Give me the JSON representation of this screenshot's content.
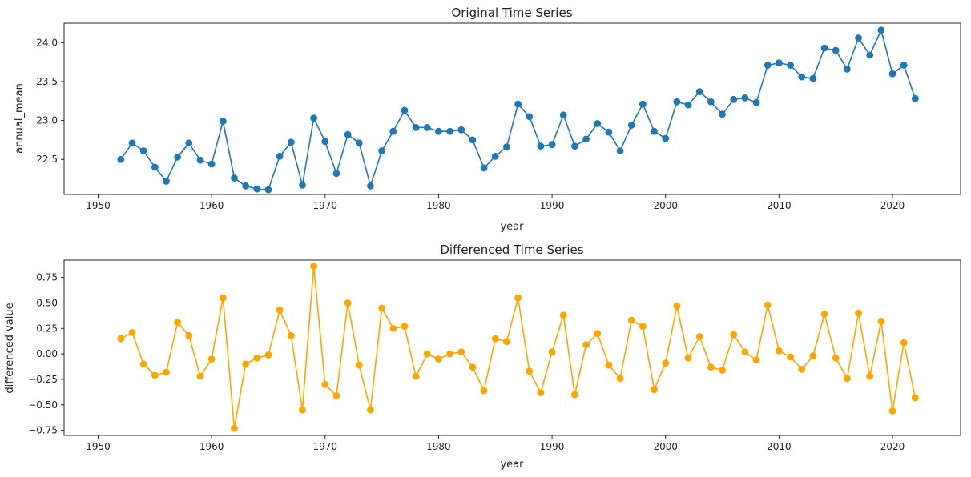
{
  "chart_data": [
    {
      "type": "line",
      "title": "Original Time Series",
      "xlabel": "year",
      "ylabel": "annual_mean",
      "xlim": [
        1947,
        2026
      ],
      "ylim": [
        22.05,
        24.25
      ],
      "xticks": [
        1950,
        1960,
        1970,
        1980,
        1990,
        2000,
        2010,
        2020
      ],
      "yticks": [
        22.5,
        23.0,
        23.5,
        24.0
      ],
      "ytick_labels": [
        "22.5",
        "23.0",
        "23.5",
        "24.0"
      ],
      "grid": false,
      "series": [
        {
          "color": "#1f77b4",
          "marker": "circle",
          "x": [
            1952,
            1953,
            1954,
            1955,
            1956,
            1957,
            1958,
            1959,
            1960,
            1961,
            1962,
            1963,
            1964,
            1965,
            1966,
            1967,
            1968,
            1969,
            1970,
            1971,
            1972,
            1973,
            1974,
            1975,
            1976,
            1977,
            1978,
            1979,
            1980,
            1981,
            1982,
            1983,
            1984,
            1985,
            1986,
            1987,
            1988,
            1989,
            1990,
            1991,
            1992,
            1993,
            1994,
            1995,
            1996,
            1997,
            1998,
            1999,
            2000,
            2001,
            2002,
            2003,
            2004,
            2005,
            2006,
            2007,
            2008,
            2009,
            2010,
            2011,
            2012,
            2013,
            2014,
            2015,
            2016,
            2017,
            2018,
            2019,
            2020,
            2021,
            2022
          ],
          "y": [
            22.5,
            22.71,
            22.61,
            22.4,
            22.22,
            22.53,
            22.71,
            22.49,
            22.44,
            22.99,
            22.26,
            22.16,
            22.12,
            22.11,
            22.54,
            22.72,
            22.17,
            23.03,
            22.73,
            22.32,
            22.82,
            22.71,
            22.16,
            22.61,
            22.86,
            23.13,
            22.91,
            22.91,
            22.86,
            22.86,
            22.88,
            22.75,
            22.39,
            22.54,
            22.66,
            23.21,
            23.05,
            22.67,
            22.69,
            23.07,
            22.67,
            22.76,
            22.96,
            22.85,
            22.61,
            22.94,
            23.21,
            22.86,
            22.77,
            23.24,
            23.2,
            23.37,
            23.24,
            23.08,
            23.27,
            23.29,
            23.23,
            23.71,
            23.74,
            23.71,
            23.56,
            23.54,
            23.93,
            23.9,
            23.66,
            24.06,
            23.84,
            24.16,
            23.6,
            23.71,
            23.28
          ]
        }
      ]
    },
    {
      "type": "line",
      "title": "Differenced Time Series",
      "xlabel": "year",
      "ylabel": "differenced value",
      "xlim": [
        1947,
        2026
      ],
      "ylim": [
        -0.8,
        0.92
      ],
      "xticks": [
        1950,
        1960,
        1970,
        1980,
        1990,
        2000,
        2010,
        2020
      ],
      "yticks": [
        -0.75,
        -0.5,
        -0.25,
        0.0,
        0.25,
        0.5,
        0.75
      ],
      "ytick_labels": [
        "−0.75",
        "−0.50",
        "−0.25",
        "0.00",
        "0.25",
        "0.50",
        "0.75"
      ],
      "grid": false,
      "series": [
        {
          "color": "#ffa500",
          "marker": "circle",
          "x": [
            1952,
            1953,
            1954,
            1955,
            1956,
            1957,
            1958,
            1959,
            1960,
            1961,
            1962,
            1963,
            1964,
            1965,
            1966,
            1967,
            1968,
            1969,
            1970,
            1971,
            1972,
            1973,
            1974,
            1975,
            1976,
            1977,
            1978,
            1979,
            1980,
            1981,
            1982,
            1983,
            1984,
            1985,
            1986,
            1987,
            1988,
            1989,
            1990,
            1991,
            1992,
            1993,
            1994,
            1995,
            1996,
            1997,
            1998,
            1999,
            2000,
            2001,
            2002,
            2003,
            2004,
            2005,
            2006,
            2007,
            2008,
            2009,
            2010,
            2011,
            2012,
            2013,
            2014,
            2015,
            2016,
            2017,
            2018,
            2019,
            2020,
            2021,
            2022
          ],
          "y": [
            0.15,
            0.21,
            -0.1,
            -0.21,
            -0.18,
            0.31,
            0.18,
            -0.22,
            -0.05,
            0.55,
            -0.73,
            -0.1,
            -0.04,
            -0.01,
            0.43,
            0.18,
            -0.55,
            0.86,
            -0.3,
            -0.41,
            0.5,
            -0.11,
            -0.55,
            0.45,
            0.25,
            0.27,
            -0.22,
            0.0,
            -0.05,
            0.0,
            0.02,
            -0.13,
            -0.36,
            0.15,
            0.12,
            0.55,
            -0.17,
            -0.38,
            0.02,
            0.38,
            -0.4,
            0.09,
            0.2,
            -0.11,
            -0.24,
            0.33,
            0.27,
            -0.35,
            -0.09,
            0.47,
            -0.04,
            0.17,
            -0.13,
            -0.16,
            0.19,
            0.02,
            -0.06,
            0.48,
            0.03,
            -0.03,
            -0.15,
            -0.02,
            0.39,
            -0.04,
            -0.24,
            0.4,
            -0.22,
            0.32,
            -0.56,
            0.11,
            -0.43
          ]
        }
      ]
    }
  ]
}
